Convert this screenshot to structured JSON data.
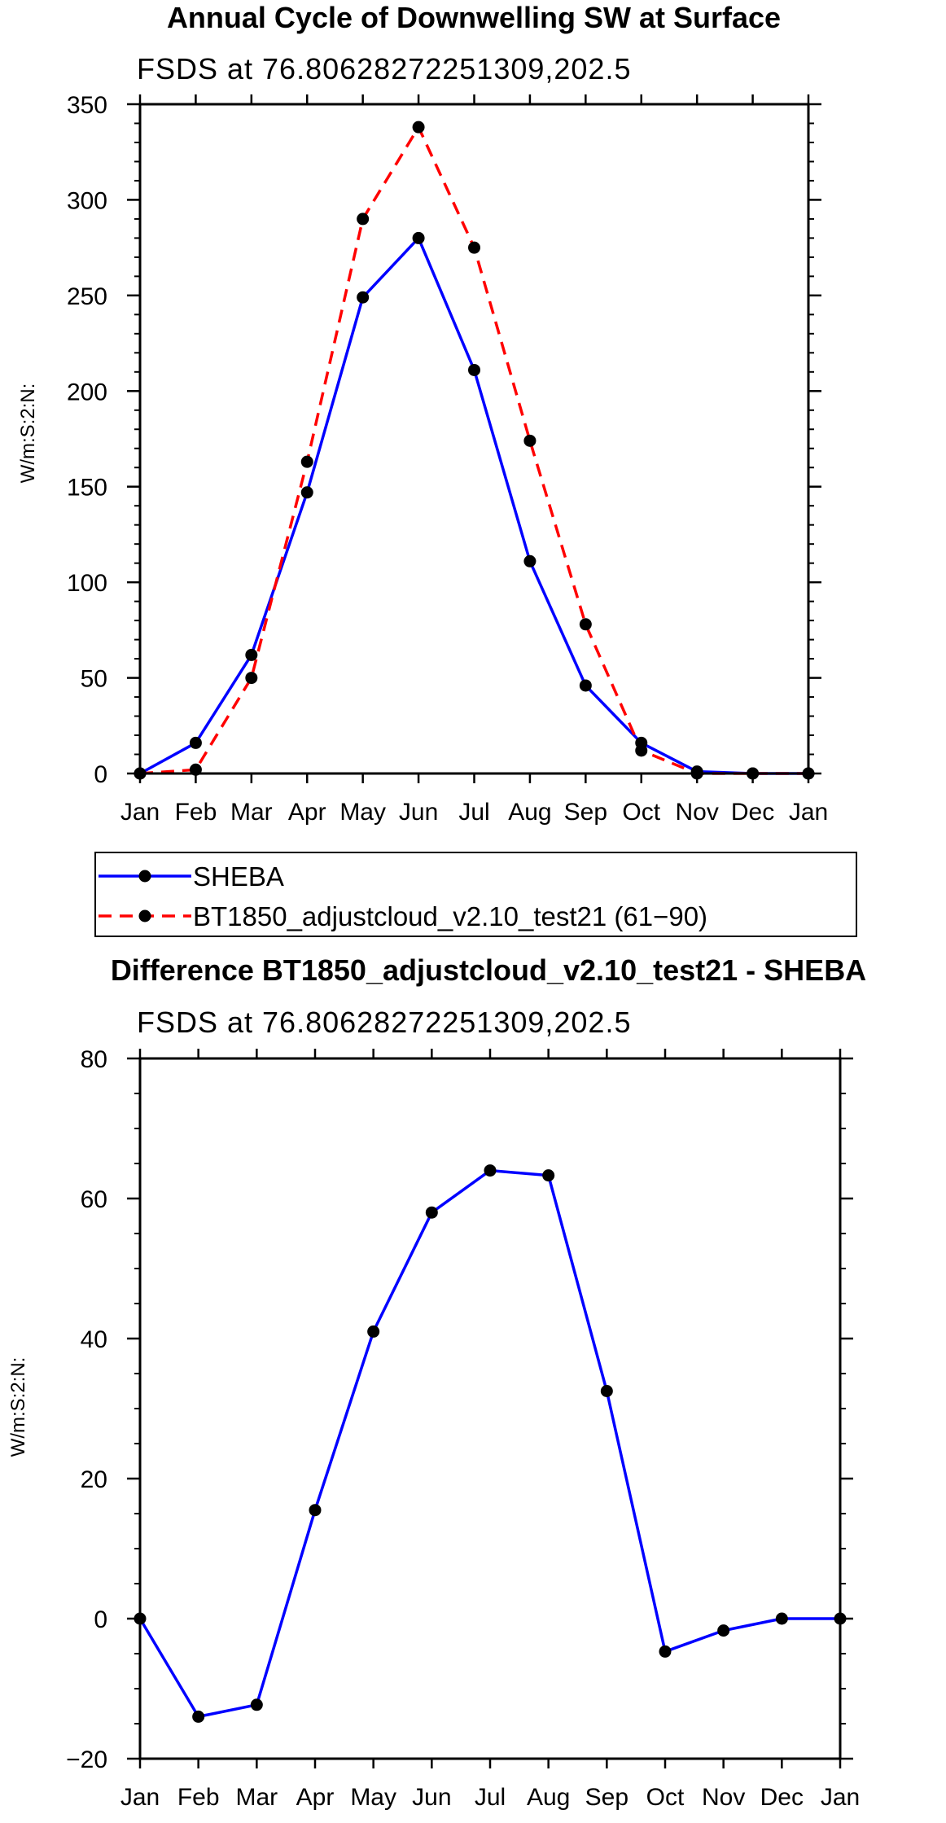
{
  "chart_data": [
    {
      "type": "line",
      "title": "Annual Cycle of Downwelling SW at Surface",
      "subtitle": "FSDS at 76.80628272251309,202.5",
      "ylabel": "W/m:S:2:N:",
      "xlabel": "",
      "categories": [
        "Jan",
        "Feb",
        "Mar",
        "Apr",
        "May",
        "Jun",
        "Jul",
        "Aug",
        "Sep",
        "Oct",
        "Nov",
        "Dec",
        "Jan"
      ],
      "ylim": [
        0,
        350
      ],
      "yticks": [
        0,
        50,
        100,
        150,
        200,
        250,
        300,
        350
      ],
      "ytick_labels": [
        "0",
        "50",
        "100",
        "150",
        "200",
        "250",
        "300",
        "350"
      ],
      "grid": false,
      "legend_position": "bottom",
      "series": [
        {
          "name": "SHEBA",
          "color": "#0000ff",
          "dash": "solid",
          "values": [
            0,
            16,
            62,
            147,
            249,
            280,
            211,
            111,
            46,
            16,
            1,
            0,
            0
          ]
        },
        {
          "name": "BT1850_adjustcloud_v2.10_test21 (61−90)",
          "color": "#ff0000",
          "dash": "dashed",
          "values": [
            0,
            2,
            50,
            163,
            290,
            338,
            275,
            174,
            78,
            12,
            0,
            0,
            0
          ]
        }
      ]
    },
    {
      "type": "line",
      "title": "Difference BT1850_adjustcloud_v2.10_test21 - SHEBA",
      "subtitle": "FSDS at 76.80628272251309,202.5",
      "ylabel": "W/m:S:2:N:",
      "xlabel": "",
      "categories": [
        "Jan",
        "Feb",
        "Mar",
        "Apr",
        "May",
        "Jun",
        "Jul",
        "Aug",
        "Sep",
        "Oct",
        "Nov",
        "Dec",
        "Jan"
      ],
      "ylim": [
        -20,
        80
      ],
      "yticks": [
        -20,
        0,
        20,
        40,
        60,
        80
      ],
      "ytick_labels": [
        "−20",
        "0",
        "20",
        "40",
        "60",
        "80"
      ],
      "grid": false,
      "series": [
        {
          "color": "#0000ff",
          "dash": "solid",
          "values": [
            0,
            -14,
            -12.3,
            15.5,
            41,
            58,
            64,
            63.3,
            32.5,
            -4.7,
            -1.7,
            0,
            0
          ]
        }
      ]
    }
  ]
}
